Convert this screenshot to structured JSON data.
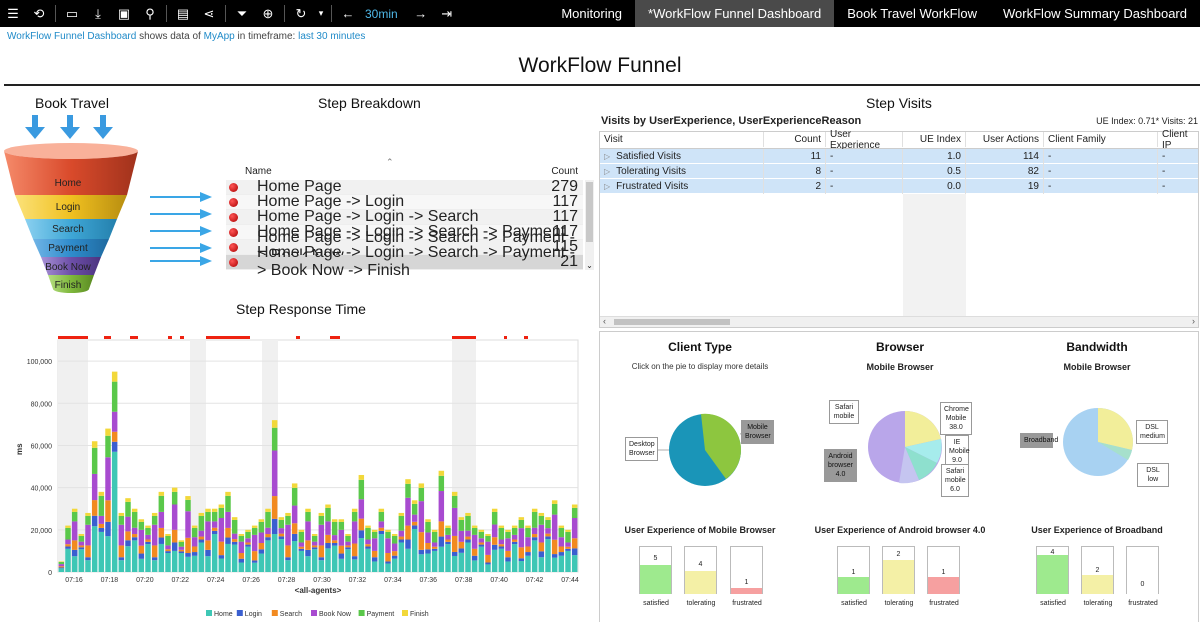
{
  "toolbar": {
    "time_label": "30min"
  },
  "tabs": [
    {
      "label": "Monitoring"
    },
    {
      "label": "*WorkFlow Funnel Dashboard"
    },
    {
      "label": "Book Travel WorkFlow"
    },
    {
      "label": "WorkFlow Summary Dashboard"
    }
  ],
  "subtitle": {
    "dashboard": "WorkFlow Funnel Dashboard",
    "mid": "shows data of",
    "app": "MyApp",
    "in": "in timeframe:",
    "timeframe": "last 30 minutes"
  },
  "title": "WorkFlow Funnel",
  "funnel": {
    "title": "Book Travel",
    "steps": [
      "Home",
      "Login",
      "Search",
      "Payment",
      "Book Now",
      "Finish"
    ],
    "colors": [
      "#d94a2b",
      "#f0c020",
      "#3fa7d6",
      "#2f8ccc",
      "#6d4fa8",
      "#7fb83c"
    ]
  },
  "step_breakdown": {
    "title": "Step Breakdown",
    "col_name": "Name",
    "col_count": "Count",
    "rows": [
      {
        "name": "Home Page",
        "count": "279"
      },
      {
        "name": "Home Page -> Login",
        "count": "117"
      },
      {
        "name": "Home Page -> Login -> Search",
        "count": "117"
      },
      {
        "name": "Home Page -> Login -> Search -> Payment",
        "count": "117"
      },
      {
        "name": "Home Page -> Login -> Search -> Payment -> Book Now",
        "count": "115"
      },
      {
        "name": "Home Page -> Login -> Search -> Payment -> Book Now -> Finish",
        "count": "21"
      }
    ]
  },
  "step_response": {
    "title": "Step Response Time"
  },
  "chart_data": {
    "type": "bar",
    "title": "Step Response Time",
    "xlabel": "<all-agents>",
    "ylabel": "ms",
    "ylim": [
      0,
      110000
    ],
    "yticks": [
      "0",
      "20,000",
      "40,000",
      "60,000",
      "80,000",
      "100,000"
    ],
    "xticks": [
      "07:16",
      "07:18",
      "07:20",
      "07:22",
      "07:24",
      "07:26",
      "07:28",
      "07:30",
      "07:32",
      "07:34",
      "07:36",
      "07:38",
      "07:40",
      "07:42",
      "07:44"
    ],
    "legend": [
      "Home",
      "Login",
      "Search",
      "Book Now",
      "Payment",
      "Finish"
    ],
    "colors": [
      "#3ec7b5",
      "#3a5fd0",
      "#f28a20",
      "#a84bd0",
      "#5ac84a",
      "#f2d83a"
    ],
    "stacked_totals": [
      5000,
      22000,
      30000,
      18000,
      28000,
      62000,
      38000,
      68000,
      95000,
      28000,
      35000,
      30000,
      25000,
      22000,
      28000,
      38000,
      18000,
      40000,
      15000,
      36000,
      22000,
      28000,
      30000,
      30000,
      32000,
      38000,
      26000,
      18000,
      20000,
      22000,
      25000,
      30000,
      72000,
      26000,
      28000,
      42000,
      20000,
      30000,
      18000,
      28000,
      32000,
      25000,
      25000,
      18000,
      30000,
      46000,
      22000,
      20000,
      30000,
      20000,
      18000,
      28000,
      44000,
      34000,
      42000,
      25000,
      20000,
      48000,
      22000,
      38000,
      26000,
      28000,
      22000,
      20000,
      18000,
      30000,
      22000,
      20000,
      22000,
      26000,
      22000,
      30000,
      28000,
      26000,
      34000,
      22000,
      20000,
      32000
    ],
    "grid": true,
    "legend_position": "bottom"
  },
  "step_visits": {
    "title": "Step Visits",
    "grid_title": "Visits by UserExperience, UserExperienceReason",
    "ue_info": "UE Index: 0.71* Visits: 21",
    "columns": [
      "Visit",
      "Count",
      "User Experience",
      "UE Index",
      "User Actions",
      "Client Family",
      "Client IP"
    ],
    "rows": [
      {
        "visit": "Satisfied Visits",
        "count": "11",
        "ux": "-",
        "uei": "1.0",
        "actions": "114",
        "family": "-",
        "ip": "-"
      },
      {
        "visit": "Tolerating Visits",
        "count": "8",
        "ux": "-",
        "uei": "0.5",
        "actions": "82",
        "family": "-",
        "ip": "-"
      },
      {
        "visit": "Frustrated Visits",
        "count": "2",
        "ux": "-",
        "uei": "0.0",
        "actions": "19",
        "family": "-",
        "ip": "-"
      }
    ]
  },
  "client_type": {
    "title": "Client Type",
    "note": "Click on the pie to display more details",
    "labels": [
      "Desktop Browser",
      "Mobile Browser"
    ],
    "values": [
      55,
      45
    ],
    "ue_title": "User Experience of Mobile Browser",
    "ue": [
      {
        "label": "satisfied",
        "value": "5",
        "frac": 0.62
      },
      {
        "label": "tolerating",
        "value": "4",
        "frac": 0.5
      },
      {
        "label": "frustrated",
        "value": "1",
        "frac": 0.12
      }
    ]
  },
  "browser": {
    "title": "Browser",
    "subtitle": "Mobile Browser",
    "labels": [
      "Android browser 4.0",
      "Chrome Mobile 38.0",
      "IE Mobile 9.0",
      "Safari mobile 6.0",
      "Safari mobile"
    ],
    "values": [
      48,
      22,
      10,
      12,
      8
    ],
    "ue_title": "User Experience of Android browser 4.0",
    "ue": [
      {
        "label": "satisfied",
        "value": "1",
        "frac": 0.36
      },
      {
        "label": "tolerating",
        "value": "2",
        "frac": 0.72
      },
      {
        "label": "frustrated",
        "value": "1",
        "frac": 0.36
      }
    ]
  },
  "bandwidth": {
    "title": "Bandwidth",
    "subtitle": "Mobile Browser",
    "labels": [
      "Broadband",
      "DSL medium",
      "DSL low"
    ],
    "values": [
      70,
      25,
      5
    ],
    "ue_title": "User Experience of Broadband",
    "ue": [
      {
        "label": "satisfied",
        "value": "4",
        "frac": 0.82
      },
      {
        "label": "tolerating",
        "value": "2",
        "frac": 0.41
      },
      {
        "label": "frustrated",
        "value": "0",
        "frac": 0
      }
    ]
  }
}
